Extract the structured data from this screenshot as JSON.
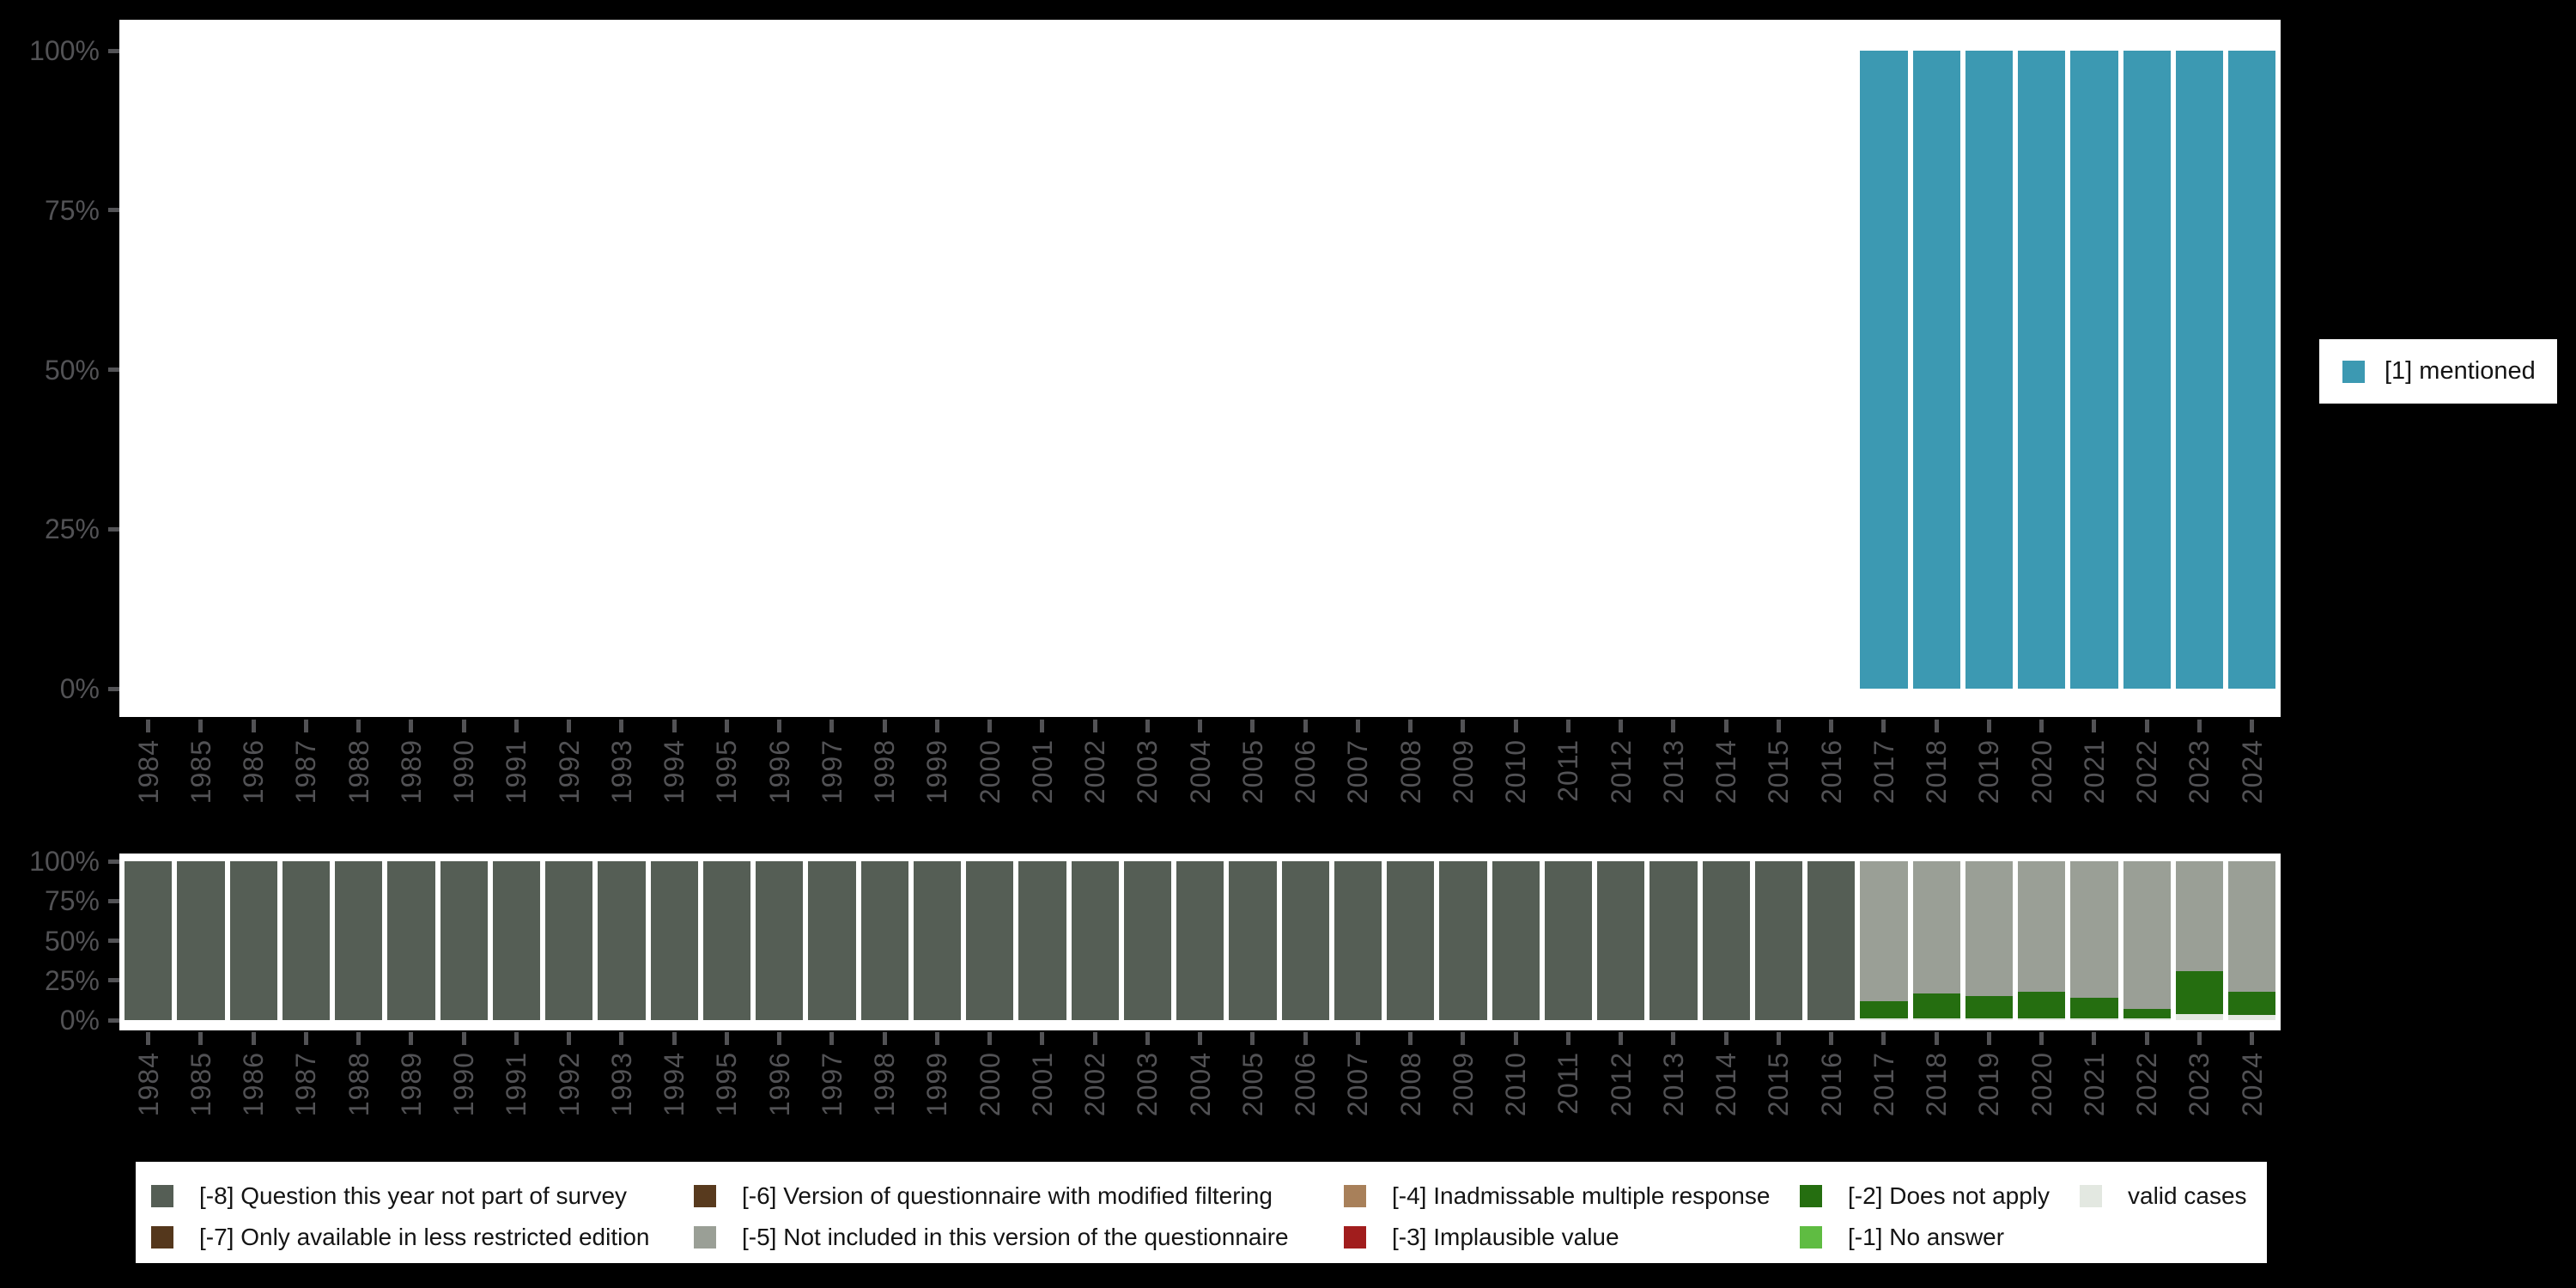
{
  "colors": {
    "background": "#000000",
    "panel": "#ffffff",
    "axis_text": "#525255",
    "legend_text": "#141414",
    "mentioned_teal": "#3c99b2",
    "not_part_of_survey_gray_green": "#555e55",
    "not_included_gray": "#9a9f96",
    "does_not_apply_green": "#256e10",
    "valid_cases_light": "#e3e8e1"
  },
  "years": [
    "1984",
    "1985",
    "1986",
    "1987",
    "1988",
    "1989",
    "1990",
    "1991",
    "1992",
    "1993",
    "1994",
    "1995",
    "1996",
    "1997",
    "1998",
    "1999",
    "2000",
    "2001",
    "2002",
    "2003",
    "2004",
    "2005",
    "2006",
    "2007",
    "2008",
    "2009",
    "2010",
    "2011",
    "2012",
    "2013",
    "2014",
    "2015",
    "2016",
    "2017",
    "2018",
    "2019",
    "2020",
    "2021",
    "2022",
    "2023",
    "2024"
  ],
  "y_tick_labels": [
    "100%",
    "75%",
    "50%",
    "25%",
    "0%"
  ],
  "legend_top": {
    "items": [
      {
        "label": "[1] mentioned",
        "color": "#3c99b2"
      }
    ]
  },
  "legend_bottom": {
    "items": [
      {
        "label": "[-8] Question this year not part of survey",
        "color": "#555e55",
        "col": 1,
        "row": 1
      },
      {
        "label": "[-7] Only available in less restricted edition",
        "color": "#54371c",
        "col": 1,
        "row": 2
      },
      {
        "label": "[-6] Version of questionnaire with modified filtering",
        "color": "#583a1e",
        "col": 2,
        "row": 1
      },
      {
        "label": "[-5] Not included in this version of the questionnaire",
        "color": "#9a9f96",
        "col": 2,
        "row": 2
      },
      {
        "label": "[-4] Inadmissable multiple response",
        "color": "#a8805a",
        "col": 3,
        "row": 1
      },
      {
        "label": "[-3] Implausible value",
        "color": "#a11d1d",
        "col": 3,
        "row": 2
      },
      {
        "label": "[-2] Does not apply",
        "color": "#256e10",
        "col": 4,
        "row": 1
      },
      {
        "label": "[-1] No answer",
        "color": "#5fbc42",
        "col": 4,
        "row": 2
      },
      {
        "label": "valid cases",
        "color": "#e3e8e1",
        "col": 5,
        "row": 1
      }
    ]
  },
  "chart_data": [
    {
      "type": "bar",
      "stacked": true,
      "title": "",
      "xlabel": "",
      "ylabel": "",
      "x": [
        "1984",
        "1985",
        "1986",
        "1987",
        "1988",
        "1989",
        "1990",
        "1991",
        "1992",
        "1993",
        "1994",
        "1995",
        "1996",
        "1997",
        "1998",
        "1999",
        "2000",
        "2001",
        "2002",
        "2003",
        "2004",
        "2005",
        "2006",
        "2007",
        "2008",
        "2009",
        "2010",
        "2011",
        "2012",
        "2013",
        "2014",
        "2015",
        "2016",
        "2017",
        "2018",
        "2019",
        "2020",
        "2021",
        "2022",
        "2023",
        "2024"
      ],
      "ylim": [
        0,
        100
      ],
      "ytick_labels": [
        "0%",
        "25%",
        "50%",
        "75%",
        "100%"
      ],
      "grid": false,
      "legend_position": "right",
      "note": "percentage of valid cases; bars only exist 2017-2024 at 100%",
      "series": [
        {
          "name": "[1] mentioned",
          "color": "#3c99b2",
          "values": [
            0,
            0,
            0,
            0,
            0,
            0,
            0,
            0,
            0,
            0,
            0,
            0,
            0,
            0,
            0,
            0,
            0,
            0,
            0,
            0,
            0,
            0,
            0,
            0,
            0,
            0,
            0,
            0,
            0,
            0,
            0,
            0,
            0,
            100,
            100,
            100,
            100,
            100,
            100,
            100,
            100
          ]
        }
      ]
    },
    {
      "type": "bar",
      "stacked": true,
      "title": "",
      "xlabel": "",
      "ylabel": "",
      "x": [
        "1984",
        "1985",
        "1986",
        "1987",
        "1988",
        "1989",
        "1990",
        "1991",
        "1992",
        "1993",
        "1994",
        "1995",
        "1996",
        "1997",
        "1998",
        "1999",
        "2000",
        "2001",
        "2002",
        "2003",
        "2004",
        "2005",
        "2006",
        "2007",
        "2008",
        "2009",
        "2010",
        "2011",
        "2012",
        "2013",
        "2014",
        "2015",
        "2016",
        "2017",
        "2018",
        "2019",
        "2020",
        "2021",
        "2022",
        "2023",
        "2024"
      ],
      "ylim": [
        0,
        100
      ],
      "ytick_labels": [
        "0%",
        "25%",
        "50%",
        "75%",
        "100%"
      ],
      "grid": false,
      "legend_position": "bottom",
      "stack_order": "first series is bottom of stack",
      "series": [
        {
          "name": "valid cases",
          "color": "#e3e8e1",
          "values": [
            0,
            0,
            0,
            0,
            0,
            0,
            0,
            0,
            0,
            0,
            0,
            0,
            0,
            0,
            0,
            0,
            0,
            0,
            0,
            0,
            0,
            0,
            0,
            0,
            0,
            0,
            0,
            0,
            0,
            0,
            0,
            0,
            0,
            1,
            1,
            1,
            1,
            1,
            1,
            4,
            3
          ]
        },
        {
          "name": "[-2] Does not apply",
          "color": "#256e10",
          "values": [
            0,
            0,
            0,
            0,
            0,
            0,
            0,
            0,
            0,
            0,
            0,
            0,
            0,
            0,
            0,
            0,
            0,
            0,
            0,
            0,
            0,
            0,
            0,
            0,
            0,
            0,
            0,
            0,
            0,
            0,
            0,
            0,
            0,
            11,
            16,
            14,
            17,
            13,
            6,
            27,
            15
          ]
        },
        {
          "name": "[-5] Not included in this version of the questionnaire",
          "color": "#9a9f96",
          "values": [
            0,
            0,
            0,
            0,
            0,
            0,
            0,
            0,
            0,
            0,
            0,
            0,
            0,
            0,
            0,
            0,
            0,
            0,
            0,
            0,
            0,
            0,
            0,
            0,
            0,
            0,
            0,
            0,
            0,
            0,
            0,
            0,
            0,
            88,
            83,
            85,
            82,
            86,
            93,
            69,
            82
          ]
        },
        {
          "name": "[-8] Question this year not part of survey",
          "color": "#555e55",
          "values": [
            100,
            100,
            100,
            100,
            100,
            100,
            100,
            100,
            100,
            100,
            100,
            100,
            100,
            100,
            100,
            100,
            100,
            100,
            100,
            100,
            100,
            100,
            100,
            100,
            100,
            100,
            100,
            100,
            100,
            100,
            100,
            100,
            100,
            0,
            0,
            0,
            0,
            0,
            0,
            0,
            0
          ]
        }
      ]
    }
  ]
}
